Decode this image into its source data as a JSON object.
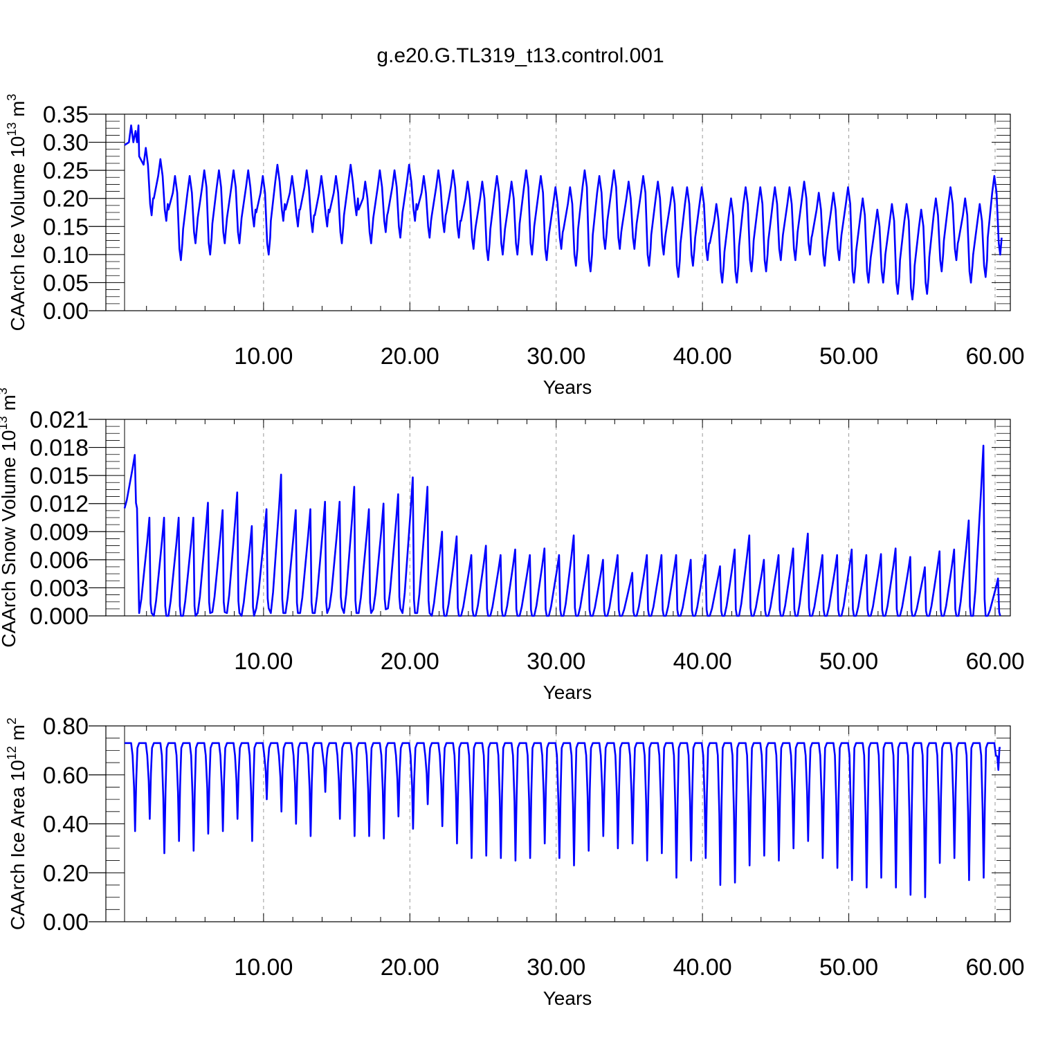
{
  "title": "g.e20.G.TL319_t13.control.001",
  "colors": {
    "series": "#0000ff",
    "axis": "#000000",
    "grid": "#999999"
  },
  "chart_data": [
    {
      "type": "line",
      "ylabel_main": "CAArch Ice Volume 10",
      "ylabel_exp": "13",
      "ylabel_unit": " m",
      "ylabel_unit_exp": "3",
      "xlabel": "Years",
      "xlim": [
        0.5,
        61
      ],
      "ylim": [
        0,
        0.35
      ],
      "yticks": [
        "0.00",
        "0.05",
        "0.10",
        "0.15",
        "0.20",
        "0.25",
        "0.30",
        "0.35"
      ],
      "xticks": [
        "10.00",
        "20.00",
        "30.00",
        "40.00",
        "50.00",
        "60.00"
      ],
      "gridlines_x": [
        10,
        20,
        30,
        40,
        50,
        60
      ],
      "annual_max": [
        0.33,
        0.29,
        0.27,
        0.24,
        0.24,
        0.25,
        0.25,
        0.25,
        0.25,
        0.24,
        0.26,
        0.24,
        0.25,
        0.24,
        0.24,
        0.26,
        0.23,
        0.25,
        0.25,
        0.26,
        0.24,
        0.25,
        0.25,
        0.23,
        0.23,
        0.24,
        0.23,
        0.25,
        0.24,
        0.22,
        0.22,
        0.25,
        0.24,
        0.25,
        0.23,
        0.24,
        0.23,
        0.22,
        0.22,
        0.22,
        0.19,
        0.2,
        0.22,
        0.22,
        0.22,
        0.22,
        0.23,
        0.21,
        0.21,
        0.22,
        0.2,
        0.18,
        0.19,
        0.19,
        0.18,
        0.2,
        0.22,
        0.2,
        0.19,
        0.24
      ],
      "annual_min": [
        0.3,
        0.17,
        0.16,
        0.09,
        0.12,
        0.1,
        0.12,
        0.12,
        0.15,
        0.1,
        0.16,
        0.15,
        0.14,
        0.15,
        0.12,
        0.17,
        0.12,
        0.14,
        0.13,
        0.16,
        0.13,
        0.14,
        0.13,
        0.11,
        0.09,
        0.1,
        0.1,
        0.1,
        0.09,
        0.11,
        0.08,
        0.07,
        0.11,
        0.11,
        0.11,
        0.08,
        0.1,
        0.06,
        0.08,
        0.09,
        0.05,
        0.05,
        0.07,
        0.07,
        0.09,
        0.09,
        0.1,
        0.08,
        0.09,
        0.05,
        0.05,
        0.05,
        0.03,
        0.02,
        0.03,
        0.07,
        0.09,
        0.05,
        0.06,
        0.1
      ]
    },
    {
      "type": "line",
      "ylabel_main": "CAArch Snow Volume 10",
      "ylabel_exp": "13",
      "ylabel_unit": " m",
      "ylabel_unit_exp": "3",
      "xlabel": "Years",
      "xlim": [
        0.5,
        61
      ],
      "ylim": [
        0,
        0.021
      ],
      "yticks": [
        "0.000",
        "0.003",
        "0.006",
        "0.009",
        "0.012",
        "0.015",
        "0.018",
        "0.021"
      ],
      "xticks": [
        "10.00",
        "20.00",
        "30.00",
        "40.00",
        "50.00",
        "60.00"
      ],
      "gridlines_x": [
        10,
        20,
        30,
        40,
        50,
        60
      ],
      "annual_max": [
        0.0172,
        0.0105,
        0.0105,
        0.0105,
        0.0105,
        0.0121,
        0.0113,
        0.0132,
        0.0096,
        0.0114,
        0.0151,
        0.0113,
        0.0114,
        0.0122,
        0.0122,
        0.0138,
        0.0114,
        0.012,
        0.013,
        0.0148,
        0.0138,
        0.009,
        0.0085,
        0.0065,
        0.0075,
        0.0065,
        0.0071,
        0.0065,
        0.0072,
        0.0065,
        0.0086,
        0.0065,
        0.006,
        0.0065,
        0.0046,
        0.0065,
        0.0065,
        0.0065,
        0.006,
        0.0065,
        0.0053,
        0.0071,
        0.0086,
        0.006,
        0.0065,
        0.0072,
        0.0088,
        0.0065,
        0.0065,
        0.0071,
        0.0065,
        0.0066,
        0.0072,
        0.0063,
        0.0052,
        0.0069,
        0.0071,
        0.0102,
        0.0182,
        0.004
      ],
      "annual_min": [
        0.0115,
        0.0003,
        0.0,
        0.0,
        0.0,
        0.0003,
        0.0004,
        0.0003,
        0.0,
        0.0008,
        0.0003,
        0.0003,
        0.0003,
        0.0003,
        0.0009,
        0.0003,
        0.0003,
        0.0007,
        0.0008,
        0.0003,
        0.0003,
        0.0,
        0.0,
        0.0,
        0.0,
        0.0,
        0.0,
        0.0,
        0.0,
        0.0,
        0.0,
        0.0,
        0.0,
        0.0,
        0.0,
        0.0,
        0.0,
        0.0,
        0.0,
        0.0,
        0.0,
        0.0,
        0.0,
        0.0,
        0.0,
        0.0,
        0.0,
        0.0,
        0.0,
        0.0,
        0.0,
        0.0,
        0.0,
        0.0,
        0.0,
        0.0,
        0.0,
        0.0,
        0.0,
        0.0
      ]
    },
    {
      "type": "line",
      "ylabel_main": "CAArch Ice Area 10",
      "ylabel_exp": "12",
      "ylabel_unit": " m",
      "ylabel_unit_exp": "2",
      "xlabel": "Years",
      "xlim": [
        0.5,
        61
      ],
      "ylim": [
        0,
        0.8
      ],
      "yticks": [
        "0.00",
        "0.20",
        "0.40",
        "0.60",
        "0.80"
      ],
      "xticks": [
        "10.00",
        "20.00",
        "30.00",
        "40.00",
        "50.00",
        "60.00"
      ],
      "gridlines_x": [
        10,
        20,
        30,
        40,
        50,
        60
      ],
      "annual_max": [
        0.73,
        0.73,
        0.73,
        0.73,
        0.73,
        0.73,
        0.73,
        0.73,
        0.73,
        0.73,
        0.73,
        0.73,
        0.73,
        0.73,
        0.73,
        0.73,
        0.73,
        0.73,
        0.73,
        0.73,
        0.73,
        0.73,
        0.73,
        0.73,
        0.73,
        0.73,
        0.73,
        0.73,
        0.73,
        0.73,
        0.73,
        0.73,
        0.73,
        0.73,
        0.73,
        0.73,
        0.73,
        0.73,
        0.73,
        0.73,
        0.73,
        0.73,
        0.73,
        0.73,
        0.73,
        0.73,
        0.73,
        0.73,
        0.73,
        0.73,
        0.73,
        0.73,
        0.73,
        0.73,
        0.73,
        0.73,
        0.73,
        0.73,
        0.73,
        0.73
      ],
      "annual_min": [
        0.37,
        0.42,
        0.28,
        0.33,
        0.29,
        0.36,
        0.37,
        0.42,
        0.33,
        0.5,
        0.45,
        0.4,
        0.35,
        0.53,
        0.42,
        0.35,
        0.35,
        0.34,
        0.43,
        0.38,
        0.48,
        0.39,
        0.32,
        0.26,
        0.27,
        0.26,
        0.25,
        0.26,
        0.32,
        0.26,
        0.23,
        0.29,
        0.35,
        0.3,
        0.32,
        0.25,
        0.28,
        0.18,
        0.25,
        0.26,
        0.15,
        0.16,
        0.23,
        0.27,
        0.25,
        0.3,
        0.33,
        0.26,
        0.22,
        0.17,
        0.14,
        0.18,
        0.14,
        0.11,
        0.1,
        0.24,
        0.26,
        0.17,
        0.18,
        0.62
      ]
    }
  ]
}
